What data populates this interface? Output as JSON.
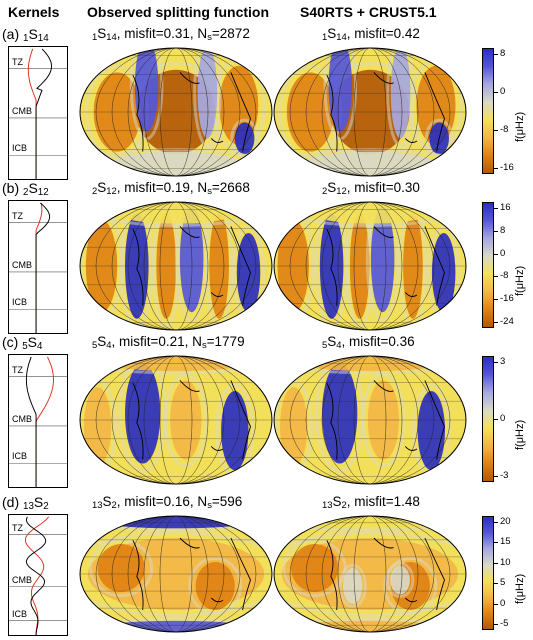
{
  "headers": {
    "kernels": "Kernels",
    "observed": "Observed splitting function",
    "model": "S40RTS + CRUST5.1"
  },
  "kernel_labels": {
    "tz": "TZ",
    "cmb": "CMB",
    "icb": "ICB"
  },
  "unit_label": "f(μHz)",
  "colors": {
    "colormap": [
      "#b35806",
      "#e08214",
      "#f4b646",
      "#f3e05a",
      "#d9d9c8",
      "#a6a8e0",
      "#5557d9",
      "#2b2fbf"
    ],
    "kernel_black": "#000000",
    "kernel_red": "#e0301e",
    "grid": "#222222"
  },
  "panels": [
    {
      "label_prefix": "(a) ",
      "mode_pre": "1",
      "mode_s": "S",
      "mode_post": "14",
      "obs_misfit": ", misfit=0.31, N",
      "obs_ns_sub": "s",
      "obs_ns_val": "=2872",
      "model_misfit": ", misfit=0.42",
      "ticks": [
        "8",
        "0",
        "-8",
        "-16"
      ]
    },
    {
      "label_prefix": "(b) ",
      "mode_pre": "2",
      "mode_s": "S",
      "mode_post": "12",
      "obs_misfit": ", misfit=0.19, N",
      "obs_ns_sub": "s",
      "obs_ns_val": "=2668",
      "model_misfit": ", misfit=0.30",
      "ticks": [
        "16",
        "8",
        "0",
        "-8",
        "-16",
        "-24"
      ]
    },
    {
      "label_prefix": "(c) ",
      "mode_pre": "5",
      "mode_s": "S",
      "mode_post": "4",
      "obs_misfit": ", misfit=0.21, N",
      "obs_ns_sub": "s",
      "obs_ns_val": "=1779",
      "model_misfit": ", misfit=0.36",
      "ticks": [
        "3",
        "0",
        "-3"
      ]
    },
    {
      "label_prefix": "(d) ",
      "mode_pre": "13",
      "mode_s": "S",
      "mode_post": "2",
      "obs_misfit": ", misfit=0.16, N",
      "obs_ns_sub": "s",
      "obs_ns_val": "=596",
      "model_misfit": ", misfit=1.48",
      "ticks": [
        "20",
        "15",
        "10",
        "5",
        "0",
        "-5"
      ]
    }
  ]
}
